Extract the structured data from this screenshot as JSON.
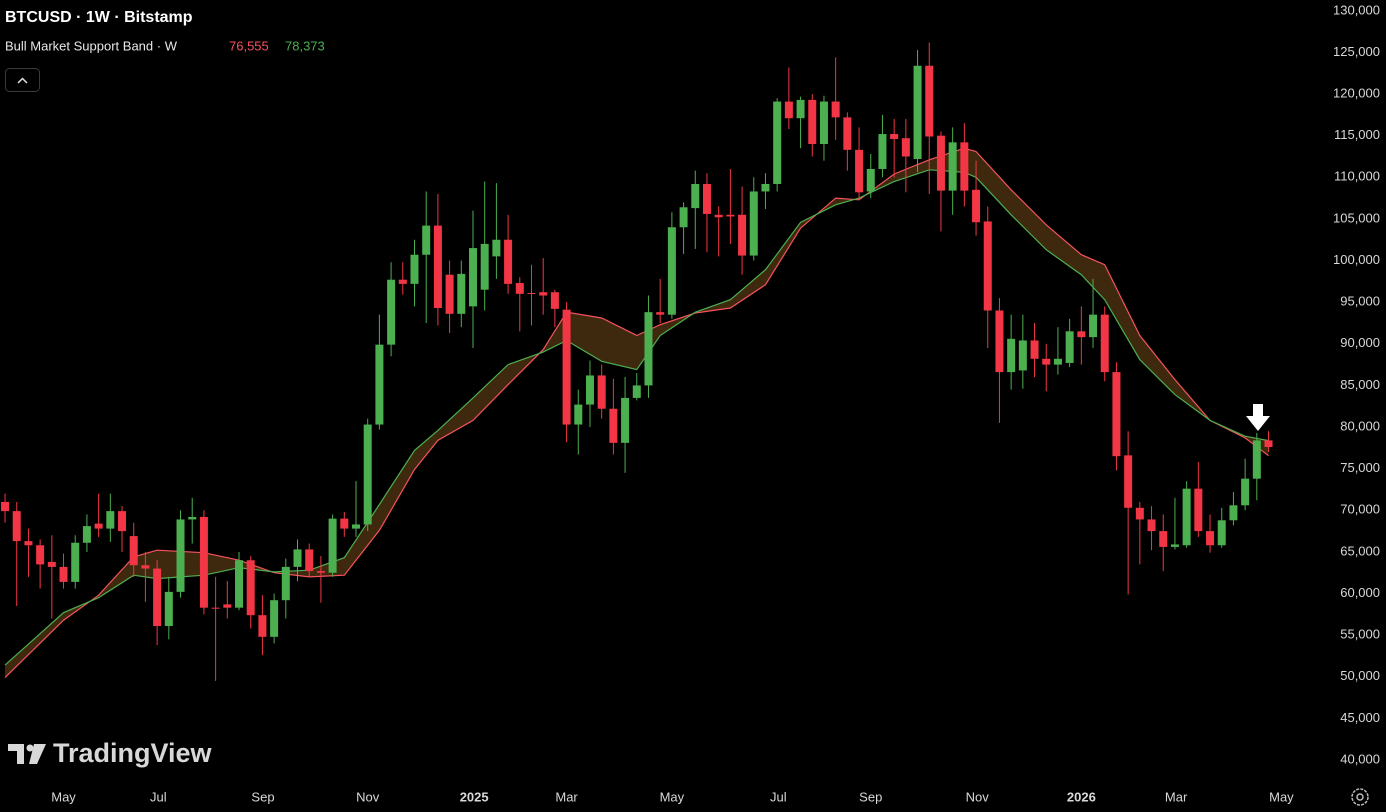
{
  "chart_data": {
    "type": "candlestick",
    "title": "BTCUSD · 1W · Bitstamp",
    "watermark": "TradingView",
    "up_color": "#4caf50",
    "down_color": "#f23645",
    "xlim": [
      -0.43,
      112.4
    ],
    "ylim": [
      37000,
      131300
    ],
    "grid": false,
    "xticks": [
      {
        "value": 5.0,
        "label": "May"
      },
      {
        "value": 13.1,
        "label": "Jul"
      },
      {
        "value": 22.05,
        "label": "Sep"
      },
      {
        "value": 31.0,
        "label": "Nov"
      },
      {
        "value": 40.1,
        "label": "2025"
      },
      {
        "value": 48.0,
        "label": "Mar"
      },
      {
        "value": 57.0,
        "label": "May"
      },
      {
        "value": 66.1,
        "label": "Jul"
      },
      {
        "value": 74.0,
        "label": "Sep"
      },
      {
        "value": 83.1,
        "label": "Nov"
      },
      {
        "value": 92.0,
        "label": "2026"
      },
      {
        "value": 100.1,
        "label": "Mar"
      },
      {
        "value": 109.1,
        "label": "May"
      }
    ],
    "yticks": [
      {
        "value": 40000,
        "label": "40,000"
      },
      {
        "value": 45000,
        "label": "45,000"
      },
      {
        "value": 50000,
        "label": "50,000"
      },
      {
        "value": 55000,
        "label": "55,000"
      },
      {
        "value": 60000,
        "label": "60,000"
      },
      {
        "value": 65000,
        "label": "65,000"
      },
      {
        "value": 70000,
        "label": "70,000"
      },
      {
        "value": 75000,
        "label": "75,000"
      },
      {
        "value": 80000,
        "label": "80,000"
      },
      {
        "value": 85000,
        "label": "85,000"
      },
      {
        "value": 90000,
        "label": "90,000"
      },
      {
        "value": 95000,
        "label": "95,000"
      },
      {
        "value": 100000,
        "label": "100,000"
      },
      {
        "value": 105000,
        "label": "105,000"
      },
      {
        "value": 110000,
        "label": "110,000"
      },
      {
        "value": 115000,
        "label": "115,000"
      },
      {
        "value": 120000,
        "label": "120,000"
      },
      {
        "value": 125000,
        "label": "125,000"
      },
      {
        "value": 130000,
        "label": "130,000"
      }
    ],
    "candles": {
      "open": [
        71000,
        69900,
        66300,
        65800,
        63800,
        63200,
        61400,
        66100,
        68400,
        67800,
        69900,
        66900,
        63400,
        63000,
        56100,
        60200,
        68900,
        69200,
        58300,
        58700,
        58300,
        64000,
        57400,
        54800,
        59200,
        63200,
        65300,
        62700,
        62500,
        69000,
        67800,
        68300,
        80300,
        89900,
        97700,
        97200,
        100700,
        104200,
        98300,
        93600,
        94500,
        96500,
        100500,
        102500,
        97300,
        96100,
        96200,
        96200,
        94100,
        80300,
        82700,
        86200,
        82200,
        78100,
        83500,
        85000,
        93800,
        93500,
        104000,
        106300,
        109200,
        105500,
        105500,
        105500,
        100600,
        108300,
        109200,
        119100,
        117100,
        119300,
        114000,
        119100,
        117200,
        113300,
        108300,
        111000,
        115200,
        114700,
        112200,
        123400,
        115000,
        108400,
        114200,
        108500,
        104700,
        94000,
        86600,
        86800,
        90400,
        88200,
        87500,
        87700,
        91500,
        90800,
        93500,
        86600,
        76600,
        70300,
        68900,
        67500,
        65600,
        65800,
        72600,
        67500,
        65800,
        68800,
        70600,
        73800,
        78400
      ],
      "high": [
        72000,
        71000,
        67800,
        66500,
        67000,
        64800,
        67000,
        69500,
        72000,
        72000,
        70500,
        68500,
        65000,
        64000,
        62000,
        70000,
        71500,
        70000,
        62000,
        61500,
        65000,
        64500,
        59800,
        60000,
        64200,
        66500,
        66000,
        64500,
        69500,
        69800,
        73500,
        81000,
        93500,
        99800,
        99800,
        102500,
        108300,
        108000,
        100000,
        100000,
        106000,
        109500,
        109300,
        105500,
        98000,
        99500,
        100300,
        96500,
        95000,
        84500,
        88000,
        87500,
        85800,
        86000,
        86500,
        95800,
        97800,
        105800,
        107000,
        110800,
        110500,
        106500,
        111000,
        108900,
        110000,
        110500,
        119500,
        123200,
        119700,
        120000,
        119800,
        124400,
        117800,
        116000,
        112800,
        117500,
        117000,
        117000,
        125300,
        126200,
        115500,
        116000,
        116500,
        112000,
        106500,
        95500,
        93500,
        93500,
        92500,
        90000,
        92000,
        93000,
        94500,
        97800,
        94500,
        87800,
        79500,
        71000,
        70500,
        69500,
        71500,
        73500,
        75800,
        69500,
        70300,
        72200,
        76200,
        79300,
        79500
      ],
      "low": [
        68500,
        58500,
        62000,
        60600,
        57000,
        60600,
        60600,
        65000,
        66800,
        66200,
        65000,
        62000,
        59000,
        53800,
        54500,
        59500,
        66000,
        57500,
        49500,
        57000,
        58000,
        55800,
        52600,
        54000,
        57000,
        61500,
        62000,
        58900,
        62000,
        66800,
        66800,
        67500,
        79700,
        88500,
        95900,
        94500,
        92500,
        92200,
        91300,
        92000,
        89500,
        94000,
        97800,
        96000,
        91500,
        92200,
        93500,
        92000,
        78200,
        76700,
        80000,
        81000,
        76700,
        74500,
        83200,
        83500,
        92500,
        93000,
        100800,
        101400,
        101000,
        100500,
        102000,
        98300,
        100000,
        106200,
        108300,
        115800,
        113500,
        112500,
        112000,
        114500,
        110800,
        107300,
        107500,
        110000,
        110000,
        108200,
        110600,
        108000,
        103500,
        105500,
        106500,
        103000,
        89500,
        80500,
        84500,
        84600,
        86000,
        84300,
        86300,
        87200,
        87500,
        89500,
        85500,
        74800,
        59900,
        63500,
        65200,
        62700,
        65300,
        65500,
        66800,
        64900,
        65500,
        68200,
        70000,
        71200,
        77000
      ],
      "close": [
        69900,
        66300,
        65800,
        63500,
        63200,
        61400,
        66100,
        68100,
        67800,
        69900,
        67500,
        63400,
        63000,
        56100,
        60200,
        68900,
        69200,
        58300,
        58200,
        58300,
        64000,
        57400,
        54800,
        59200,
        63200,
        65300,
        62700,
        62500,
        69000,
        67800,
        68300,
        80300,
        89900,
        97700,
        97200,
        100700,
        104200,
        94300,
        93600,
        98400,
        101500,
        102000,
        102500,
        97200,
        96000,
        96000,
        95800,
        94200,
        80300,
        82700,
        86200,
        82200,
        78100,
        83500,
        85000,
        93800,
        93500,
        104000,
        106400,
        109200,
        105600,
        105200,
        105300,
        100600,
        108300,
        109200,
        119100,
        117100,
        119300,
        114000,
        119100,
        117200,
        113300,
        108200,
        111000,
        115200,
        114600,
        112500,
        123400,
        114900,
        108400,
        114200,
        108400,
        104600,
        94000,
        86600,
        90600,
        90400,
        88200,
        87500,
        88200,
        91500,
        90800,
        93500,
        86600,
        76500,
        70300,
        68900,
        67500,
        65600,
        65900,
        72600,
        67500,
        65800,
        68800,
        70600,
        73800,
        78400,
        77600
      ]
    },
    "indicator": {
      "name": "Bull Market Support Band · W",
      "fill": "#4a3010",
      "lines": [
        {
          "color": "#f7525f",
          "last_label": "76,555",
          "x": [
            0,
            5,
            8,
            11,
            13,
            17,
            20,
            23,
            26,
            29,
            32,
            35,
            37,
            40,
            43,
            46,
            48,
            51,
            54,
            56,
            59,
            62,
            65,
            68,
            71,
            73,
            76,
            79,
            82,
            83,
            86,
            89,
            92,
            94,
            97,
            100,
            103,
            106,
            108
          ],
          "values": [
            49900,
            56800,
            59800,
            64400,
            65200,
            64900,
            64000,
            62500,
            62000,
            62200,
            67600,
            74900,
            78400,
            80800,
            85100,
            89300,
            93800,
            93100,
            91000,
            92300,
            93700,
            94300,
            97100,
            103900,
            107500,
            107300,
            110400,
            112100,
            113500,
            113100,
            108500,
            104300,
            100700,
            99500,
            91000,
            85700,
            80800,
            78700,
            76555
          ]
        },
        {
          "color": "#4caf50",
          "last_label": "78,373",
          "x": [
            0,
            5,
            8,
            11,
            13,
            17,
            20,
            23,
            26,
            29,
            32,
            35,
            37,
            40,
            43,
            46,
            48,
            51,
            54,
            56,
            59,
            62,
            65,
            68,
            71,
            73,
            76,
            79,
            82,
            83,
            86,
            89,
            92,
            94,
            97,
            100,
            103,
            106,
            108
          ],
          "values": [
            51400,
            57700,
            59500,
            62200,
            61800,
            62200,
            63100,
            62600,
            62800,
            64300,
            70700,
            77200,
            79600,
            83500,
            87500,
            89000,
            90400,
            87900,
            86900,
            91000,
            93800,
            95300,
            98900,
            104600,
            106700,
            107500,
            109500,
            110900,
            110600,
            110000,
            105500,
            101300,
            98300,
            95300,
            88100,
            83900,
            80800,
            78900,
            78373
          ]
        }
      ]
    }
  }
}
